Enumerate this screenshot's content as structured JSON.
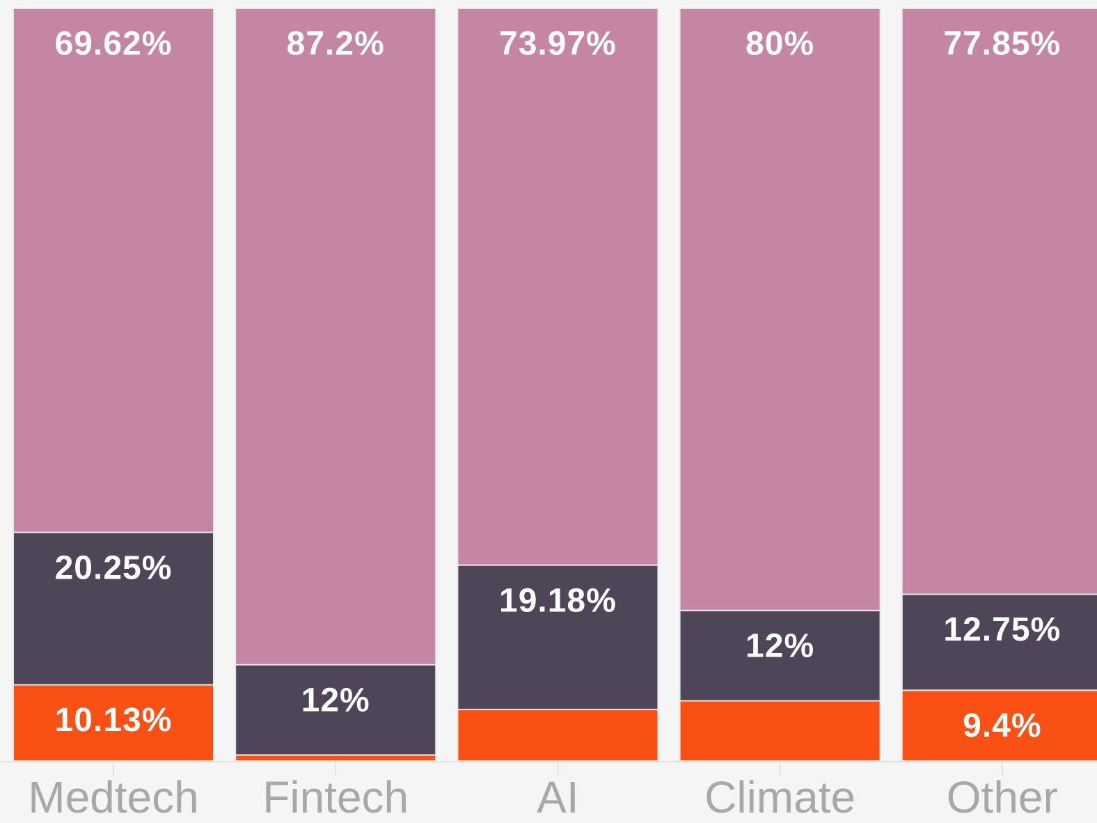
{
  "chart_data": {
    "type": "stacked_bar",
    "categories": [
      "Medtech",
      "Fintech",
      "AI",
      "Climate",
      "Other"
    ],
    "series": [
      {
        "color": "#fa5014",
        "values": [
          10.13,
          0.8,
          6.85,
          8,
          9.4
        ],
        "value_labels": [
          "10.13%",
          null,
          null,
          null,
          "9.4%"
        ]
      },
      {
        "color": "#4f4558",
        "values": [
          20.25,
          12,
          19.18,
          12,
          12.75
        ],
        "value_labels": [
          "20.25%",
          "12%",
          "19.18%",
          "12%",
          "12.75%"
        ]
      },
      {
        "color": "#c486a4",
        "values": [
          69.62,
          87.2,
          73.97,
          80,
          77.85
        ],
        "value_labels": [
          "69.62%",
          "87.2%",
          "73.97%",
          "80%",
          "77.85%"
        ]
      }
    ],
    "ylim": [
      0,
      100
    ]
  }
}
